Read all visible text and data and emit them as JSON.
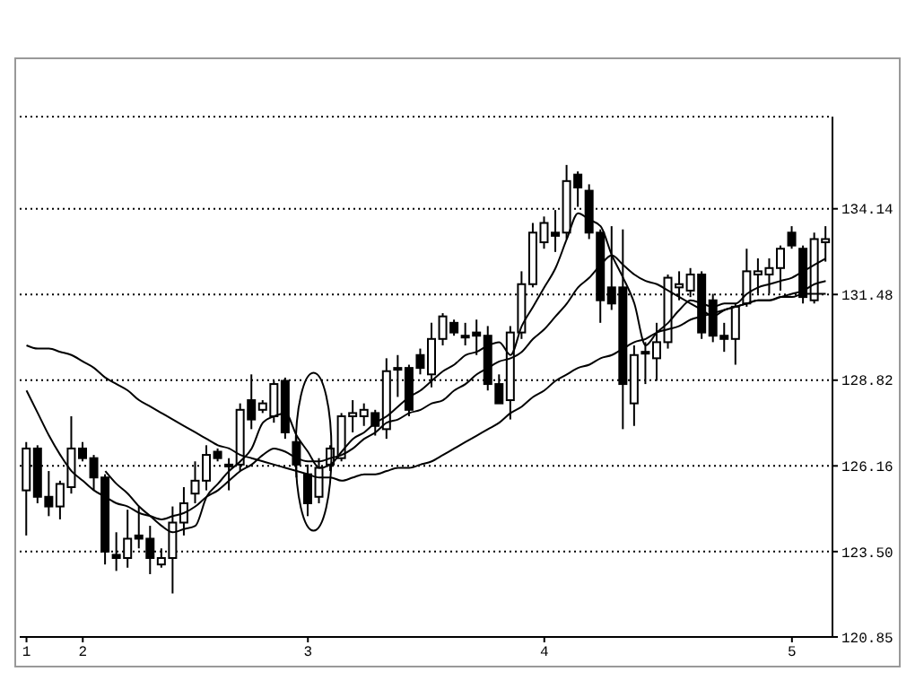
{
  "chart_data": {
    "type": "candlestick",
    "categories": [
      "1",
      null,
      null,
      null,
      null,
      "2",
      null,
      null,
      null,
      null,
      null,
      null,
      null,
      null,
      null,
      null,
      null,
      null,
      null,
      null,
      null,
      null,
      null,
      null,
      null,
      "3",
      null,
      null,
      null,
      null,
      null,
      null,
      null,
      null,
      null,
      null,
      null,
      null,
      null,
      null,
      null,
      null,
      null,
      null,
      null,
      null,
      "4",
      null,
      null,
      null,
      null,
      null,
      null,
      null,
      null,
      null,
      null,
      null,
      null,
      null,
      null,
      null,
      null,
      null,
      null,
      null,
      null,
      null,
      "5",
      null,
      null,
      null
    ],
    "ohlc": [
      [
        125.4,
        126.9,
        124.0,
        126.7
      ],
      [
        126.7,
        126.8,
        125.0,
        125.2
      ],
      [
        125.2,
        126.0,
        124.6,
        124.9
      ],
      [
        124.9,
        125.7,
        124.5,
        125.6
      ],
      [
        125.5,
        127.7,
        125.3,
        126.7
      ],
      [
        126.7,
        126.9,
        126.3,
        126.4
      ],
      [
        126.4,
        126.5,
        125.4,
        125.8
      ],
      [
        125.8,
        125.9,
        123.1,
        123.5
      ],
      [
        123.4,
        124.1,
        122.9,
        123.3
      ],
      [
        123.3,
        124.8,
        123.0,
        123.9
      ],
      [
        124.0,
        124.9,
        123.6,
        123.9
      ],
      [
        123.9,
        124.3,
        122.8,
        123.3
      ],
      [
        123.1,
        123.6,
        123.0,
        123.3
      ],
      [
        123.3,
        124.9,
        122.2,
        124.4
      ],
      [
        124.4,
        125.5,
        124.0,
        125.0
      ],
      [
        125.3,
        126.3,
        125.0,
        125.7
      ],
      [
        125.7,
        126.8,
        125.4,
        126.5
      ],
      [
        126.6,
        126.7,
        126.3,
        126.4
      ],
      [
        126.2,
        126.4,
        125.4,
        126.2
      ],
      [
        126.2,
        128.1,
        126.0,
        127.9
      ],
      [
        128.2,
        129.0,
        127.3,
        127.6
      ],
      [
        127.9,
        128.2,
        127.8,
        128.1
      ],
      [
        127.7,
        128.8,
        127.5,
        128.7
      ],
      [
        128.8,
        128.9,
        127.0,
        127.2
      ],
      [
        126.9,
        127.1,
        125.8,
        126.2
      ],
      [
        125.9,
        126.2,
        124.6,
        125.0
      ],
      [
        125.2,
        126.4,
        125.0,
        126.1
      ],
      [
        126.2,
        126.8,
        126.0,
        126.7
      ],
      [
        126.4,
        127.8,
        126.3,
        127.7
      ],
      [
        127.7,
        128.2,
        127.2,
        127.8
      ],
      [
        127.7,
        128.1,
        127.4,
        127.9
      ],
      [
        127.8,
        127.9,
        127.1,
        127.4
      ],
      [
        127.3,
        129.5,
        127.0,
        129.1
      ],
      [
        129.2,
        129.6,
        128.3,
        129.2
      ],
      [
        129.2,
        129.3,
        127.7,
        127.9
      ],
      [
        129.6,
        129.8,
        129.0,
        129.2
      ],
      [
        129.0,
        130.6,
        128.6,
        130.1
      ],
      [
        130.1,
        130.9,
        129.9,
        130.8
      ],
      [
        130.6,
        130.7,
        130.2,
        130.3
      ],
      [
        130.2,
        130.6,
        129.9,
        130.2
      ],
      [
        130.3,
        130.7,
        129.6,
        130.2
      ],
      [
        130.2,
        130.5,
        128.5,
        128.7
      ],
      [
        128.7,
        129.0,
        128.1,
        128.1
      ],
      [
        128.2,
        130.5,
        127.6,
        130.3
      ],
      [
        130.3,
        132.2,
        130.1,
        131.8
      ],
      [
        131.8,
        133.7,
        131.7,
        133.4
      ],
      [
        133.1,
        133.9,
        132.9,
        133.7
      ],
      [
        133.4,
        134.1,
        132.8,
        133.3
      ],
      [
        133.4,
        135.5,
        133.2,
        135.0
      ],
      [
        135.2,
        135.3,
        134.2,
        134.8
      ],
      [
        134.7,
        134.9,
        133.2,
        133.4
      ],
      [
        133.4,
        133.5,
        130.6,
        131.3
      ],
      [
        131.7,
        133.6,
        131.0,
        131.2
      ],
      [
        131.7,
        133.5,
        127.3,
        128.7
      ],
      [
        128.1,
        129.9,
        127.4,
        129.6
      ],
      [
        129.7,
        130.0,
        128.7,
        129.7
      ],
      [
        129.5,
        130.6,
        128.8,
        130.0
      ],
      [
        130.0,
        132.1,
        129.8,
        132.0
      ],
      [
        131.7,
        132.2,
        131.3,
        131.8
      ],
      [
        131.6,
        132.3,
        131.4,
        132.1
      ],
      [
        132.1,
        132.2,
        130.1,
        130.3
      ],
      [
        131.3,
        131.5,
        130.0,
        130.2
      ],
      [
        130.2,
        130.6,
        129.7,
        130.1
      ],
      [
        130.1,
        131.2,
        129.3,
        131.1
      ],
      [
        131.2,
        132.9,
        131.1,
        132.2
      ],
      [
        132.1,
        132.6,
        131.5,
        132.2
      ],
      [
        132.1,
        132.6,
        131.5,
        132.3
      ],
      [
        132.3,
        133.0,
        131.6,
        132.9
      ],
      [
        133.4,
        133.6,
        132.9,
        133.0
      ],
      [
        132.9,
        133.0,
        131.2,
        131.4
      ],
      [
        131.3,
        133.4,
        131.2,
        133.2
      ],
      [
        133.1,
        133.6,
        132.5,
        133.2
      ]
    ],
    "colors": [
      "#ffffff",
      "#000000",
      "#000000",
      "#ffffff",
      "#ffffff",
      "#000000",
      "#000000",
      "#000000",
      "#000000",
      "#ffffff",
      "#000000",
      "#000000",
      "#ffffff",
      "#ffffff",
      "#ffffff",
      "#ffffff",
      "#ffffff",
      "#000000",
      "#000000",
      "#ffffff",
      "#000000",
      "#ffffff",
      "#ffffff",
      "#000000",
      "#000000",
      "#000000",
      "#ffffff",
      "#ffffff",
      "#ffffff",
      "#ffffff",
      "#ffffff",
      "#000000",
      "#ffffff",
      "#000000",
      "#000000",
      "#000000",
      "#ffffff",
      "#ffffff",
      "#000000",
      "#000000",
      "#000000",
      "#000000",
      "#000000",
      "#ffffff",
      "#ffffff",
      "#ffffff",
      "#ffffff",
      "#000000",
      "#ffffff",
      "#000000",
      "#000000",
      "#000000",
      "#000000",
      "#000000",
      "#ffffff",
      "#000000",
      "#ffffff",
      "#ffffff",
      "#ffffff",
      "#ffffff",
      "#000000",
      "#000000",
      "#000000",
      "#ffffff",
      "#ffffff",
      "#ffffff",
      "#ffffff",
      "#ffffff",
      "#000000",
      "#000000",
      "#ffffff",
      "#ffffff"
    ],
    "series": [
      {
        "type": "line",
        "color": "#000000",
        "values": [
          129.9,
          129.8,
          129.8,
          129.7,
          129.6,
          129.4,
          129.2,
          128.9,
          128.7,
          128.5,
          128.2,
          128.0,
          127.8,
          127.6,
          127.4,
          127.2,
          127.0,
          126.8,
          126.7,
          126.5,
          126.4,
          126.3,
          126.2,
          126.1,
          126.0,
          125.9,
          125.8,
          125.8,
          125.7,
          125.8,
          125.9,
          125.9,
          126.0,
          126.1,
          126.1,
          126.2,
          126.3,
          126.5,
          126.7,
          126.9,
          127.1,
          127.3,
          127.5,
          127.8,
          128.0,
          128.3,
          128.5,
          128.8,
          129.0,
          129.2,
          129.3,
          129.5,
          129.6,
          129.8,
          130.0,
          130.1,
          130.3,
          130.4,
          130.5,
          130.7,
          130.8,
          130.9,
          131.0,
          131.1,
          131.2,
          131.3,
          131.3,
          131.4,
          131.4,
          131.5,
          131.5,
          131.5
        ]
      },
      {
        "type": "line",
        "color": "#000000",
        "values": [
          128.5,
          127.8,
          127.1,
          126.5,
          126.0,
          125.7,
          125.4,
          125.2,
          125.0,
          124.9,
          124.7,
          124.6,
          124.5,
          124.6,
          124.7,
          124.9,
          125.2,
          125.4,
          125.7,
          126.0,
          126.2,
          126.5,
          126.7,
          126.6,
          126.4,
          126.3,
          126.3,
          126.4,
          126.5,
          126.7,
          127.0,
          127.2,
          127.5,
          127.6,
          127.8,
          127.9,
          128.1,
          128.2,
          128.5,
          128.7,
          129.0,
          129.2,
          129.4,
          129.5,
          129.7,
          130.1,
          130.4,
          130.8,
          131.2,
          131.7,
          132.0,
          132.4,
          132.7,
          132.4,
          132.1,
          131.9,
          131.8,
          131.6,
          131.4,
          131.2,
          131.0,
          130.8,
          131.0,
          131.1,
          131.2,
          131.3,
          131.3,
          131.4,
          131.5,
          131.6,
          131.8,
          131.9
        ]
      },
      {
        "type": "line",
        "color": "#000000",
        "values": [
          null,
          null,
          null,
          null,
          null,
          null,
          null,
          126.0,
          125.6,
          125.3,
          124.9,
          124.6,
          124.3,
          124.1,
          124.2,
          124.3,
          125.2,
          125.6,
          126.0,
          126.3,
          126.7,
          127.5,
          127.7,
          127.8,
          127.1,
          126.6,
          126.1,
          126.2,
          126.6,
          127.0,
          127.2,
          127.5,
          127.7,
          128.0,
          128.3,
          128.5,
          128.8,
          129.1,
          129.3,
          129.6,
          129.7,
          129.9,
          130.0,
          129.6,
          130.5,
          131.1,
          131.7,
          132.3,
          133.2,
          134.0,
          133.8,
          133.6,
          132.7,
          132.0,
          131.2,
          129.9,
          130.3,
          130.6,
          131.0,
          131.3,
          131.2,
          131.1,
          131.2,
          131.2,
          131.5,
          131.7,
          131.8,
          131.9,
          132.0,
          132.2,
          132.4,
          132.6
        ]
      }
    ],
    "ylim": [
      120.85,
      137.0
    ],
    "yticks": [
      120.85,
      {
        "value": 123.5,
        "label": "123.50"
      },
      126.16,
      128.82,
      131.48,
      134.14
    ],
    "grid": "y"
  }
}
